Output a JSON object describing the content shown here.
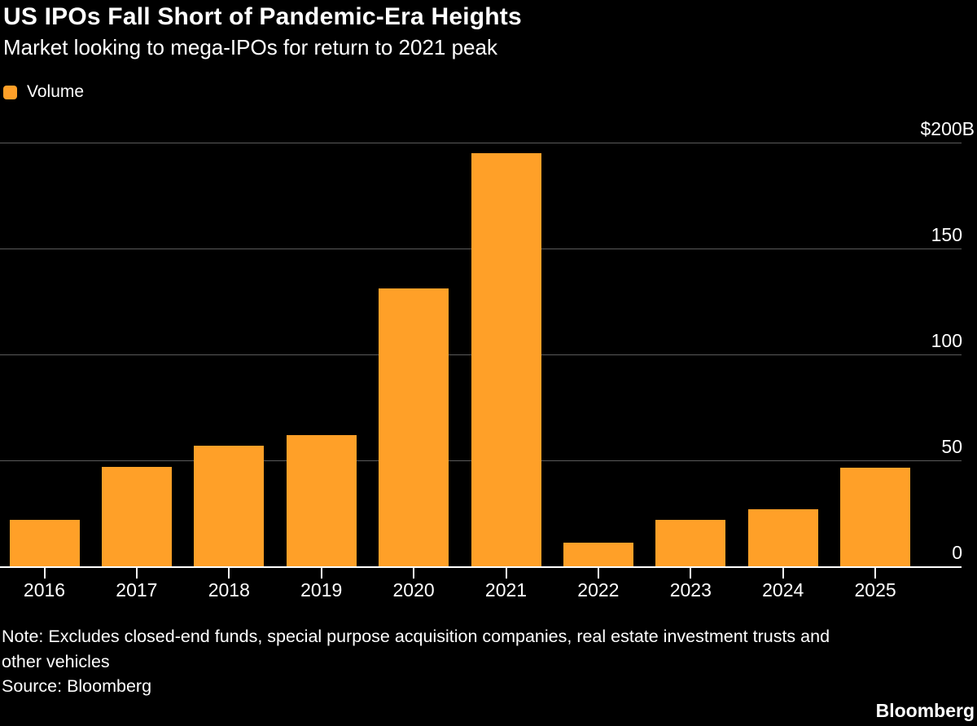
{
  "header": {
    "title": "US IPOs Fall Short of Pandemic-Era Heights",
    "subtitle": "Market looking to mega-IPOs for return to 2021 peak"
  },
  "legend": {
    "items": [
      {
        "label": "Volume",
        "color": "#FFA028"
      }
    ]
  },
  "chart_data": {
    "type": "bar",
    "title": "US IPOs Fall Short of Pandemic-Era Heights",
    "subtitle": "Market looking to mega-IPOs for return to 2021 peak",
    "categories": [
      "2016",
      "2017",
      "2018",
      "2019",
      "2020",
      "2021",
      "2022",
      "2023",
      "2024",
      "2025"
    ],
    "series": [
      {
        "name": "Volume",
        "values": [
          22,
          47,
          57,
          62,
          131,
          195,
          11,
          22,
          27,
          46.5
        ]
      }
    ],
    "ylabel": "",
    "xlabel": "",
    "ylim": [
      0,
      200
    ],
    "yticks": [
      {
        "value": 200,
        "label": "$200B"
      },
      {
        "value": 150,
        "label": "150"
      },
      {
        "value": 100,
        "label": "100"
      },
      {
        "value": 50,
        "label": "50"
      },
      {
        "value": 0,
        "label": "0"
      }
    ],
    "grid": true,
    "legend_position": "top-left",
    "colors": {
      "bar": "#FFA028",
      "grid": "#5a5a5a",
      "axis": "#ffffff",
      "text": "#ffffff",
      "background": "#000000"
    }
  },
  "footer": {
    "note_lines": [
      "Note: Excludes closed-end funds, special purpose acquisition companies, real estate investment trusts and",
      "other vehicles"
    ],
    "source": "Source: Bloomberg",
    "brand": "Bloomberg"
  }
}
